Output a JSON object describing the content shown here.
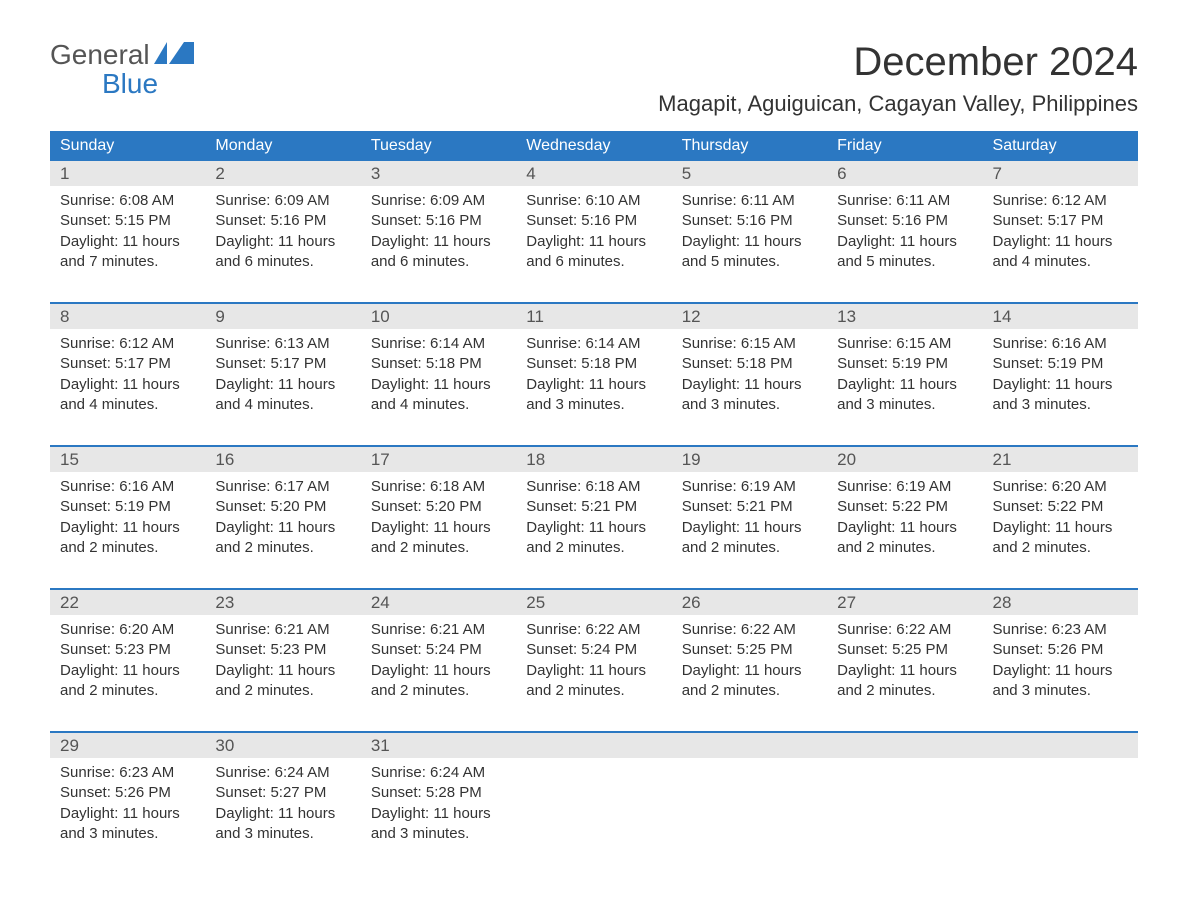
{
  "logo": {
    "text_general": "General",
    "text_blue": "Blue",
    "flag_color": "#2b78c2"
  },
  "header": {
    "month_title": "December 2024",
    "location": "Magapit, Aguiguican, Cagayan Valley, Philippines"
  },
  "colors": {
    "header_bg": "#2b78c2",
    "header_text": "#ffffff",
    "daynum_bg": "#e7e7e7",
    "body_text": "#333333",
    "week_sep": "#2b78c2",
    "page_bg": "#ffffff"
  },
  "typography": {
    "title_fontsize": 40,
    "location_fontsize": 22,
    "dow_fontsize": 16,
    "daynum_fontsize": 17,
    "body_fontsize": 15,
    "font_family": "Arial"
  },
  "days_of_week": [
    "Sunday",
    "Monday",
    "Tuesday",
    "Wednesday",
    "Thursday",
    "Friday",
    "Saturday"
  ],
  "weeks": [
    [
      {
        "n": "1",
        "sunrise": "Sunrise: 6:08 AM",
        "sunset": "Sunset: 5:15 PM",
        "day1": "Daylight: 11 hours",
        "day2": "and 7 minutes."
      },
      {
        "n": "2",
        "sunrise": "Sunrise: 6:09 AM",
        "sunset": "Sunset: 5:16 PM",
        "day1": "Daylight: 11 hours",
        "day2": "and 6 minutes."
      },
      {
        "n": "3",
        "sunrise": "Sunrise: 6:09 AM",
        "sunset": "Sunset: 5:16 PM",
        "day1": "Daylight: 11 hours",
        "day2": "and 6 minutes."
      },
      {
        "n": "4",
        "sunrise": "Sunrise: 6:10 AM",
        "sunset": "Sunset: 5:16 PM",
        "day1": "Daylight: 11 hours",
        "day2": "and 6 minutes."
      },
      {
        "n": "5",
        "sunrise": "Sunrise: 6:11 AM",
        "sunset": "Sunset: 5:16 PM",
        "day1": "Daylight: 11 hours",
        "day2": "and 5 minutes."
      },
      {
        "n": "6",
        "sunrise": "Sunrise: 6:11 AM",
        "sunset": "Sunset: 5:16 PM",
        "day1": "Daylight: 11 hours",
        "day2": "and 5 minutes."
      },
      {
        "n": "7",
        "sunrise": "Sunrise: 6:12 AM",
        "sunset": "Sunset: 5:17 PM",
        "day1": "Daylight: 11 hours",
        "day2": "and 4 minutes."
      }
    ],
    [
      {
        "n": "8",
        "sunrise": "Sunrise: 6:12 AM",
        "sunset": "Sunset: 5:17 PM",
        "day1": "Daylight: 11 hours",
        "day2": "and 4 minutes."
      },
      {
        "n": "9",
        "sunrise": "Sunrise: 6:13 AM",
        "sunset": "Sunset: 5:17 PM",
        "day1": "Daylight: 11 hours",
        "day2": "and 4 minutes."
      },
      {
        "n": "10",
        "sunrise": "Sunrise: 6:14 AM",
        "sunset": "Sunset: 5:18 PM",
        "day1": "Daylight: 11 hours",
        "day2": "and 4 minutes."
      },
      {
        "n": "11",
        "sunrise": "Sunrise: 6:14 AM",
        "sunset": "Sunset: 5:18 PM",
        "day1": "Daylight: 11 hours",
        "day2": "and 3 minutes."
      },
      {
        "n": "12",
        "sunrise": "Sunrise: 6:15 AM",
        "sunset": "Sunset: 5:18 PM",
        "day1": "Daylight: 11 hours",
        "day2": "and 3 minutes."
      },
      {
        "n": "13",
        "sunrise": "Sunrise: 6:15 AM",
        "sunset": "Sunset: 5:19 PM",
        "day1": "Daylight: 11 hours",
        "day2": "and 3 minutes."
      },
      {
        "n": "14",
        "sunrise": "Sunrise: 6:16 AM",
        "sunset": "Sunset: 5:19 PM",
        "day1": "Daylight: 11 hours",
        "day2": "and 3 minutes."
      }
    ],
    [
      {
        "n": "15",
        "sunrise": "Sunrise: 6:16 AM",
        "sunset": "Sunset: 5:19 PM",
        "day1": "Daylight: 11 hours",
        "day2": "and 2 minutes."
      },
      {
        "n": "16",
        "sunrise": "Sunrise: 6:17 AM",
        "sunset": "Sunset: 5:20 PM",
        "day1": "Daylight: 11 hours",
        "day2": "and 2 minutes."
      },
      {
        "n": "17",
        "sunrise": "Sunrise: 6:18 AM",
        "sunset": "Sunset: 5:20 PM",
        "day1": "Daylight: 11 hours",
        "day2": "and 2 minutes."
      },
      {
        "n": "18",
        "sunrise": "Sunrise: 6:18 AM",
        "sunset": "Sunset: 5:21 PM",
        "day1": "Daylight: 11 hours",
        "day2": "and 2 minutes."
      },
      {
        "n": "19",
        "sunrise": "Sunrise: 6:19 AM",
        "sunset": "Sunset: 5:21 PM",
        "day1": "Daylight: 11 hours",
        "day2": "and 2 minutes."
      },
      {
        "n": "20",
        "sunrise": "Sunrise: 6:19 AM",
        "sunset": "Sunset: 5:22 PM",
        "day1": "Daylight: 11 hours",
        "day2": "and 2 minutes."
      },
      {
        "n": "21",
        "sunrise": "Sunrise: 6:20 AM",
        "sunset": "Sunset: 5:22 PM",
        "day1": "Daylight: 11 hours",
        "day2": "and 2 minutes."
      }
    ],
    [
      {
        "n": "22",
        "sunrise": "Sunrise: 6:20 AM",
        "sunset": "Sunset: 5:23 PM",
        "day1": "Daylight: 11 hours",
        "day2": "and 2 minutes."
      },
      {
        "n": "23",
        "sunrise": "Sunrise: 6:21 AM",
        "sunset": "Sunset: 5:23 PM",
        "day1": "Daylight: 11 hours",
        "day2": "and 2 minutes."
      },
      {
        "n": "24",
        "sunrise": "Sunrise: 6:21 AM",
        "sunset": "Sunset: 5:24 PM",
        "day1": "Daylight: 11 hours",
        "day2": "and 2 minutes."
      },
      {
        "n": "25",
        "sunrise": "Sunrise: 6:22 AM",
        "sunset": "Sunset: 5:24 PM",
        "day1": "Daylight: 11 hours",
        "day2": "and 2 minutes."
      },
      {
        "n": "26",
        "sunrise": "Sunrise: 6:22 AM",
        "sunset": "Sunset: 5:25 PM",
        "day1": "Daylight: 11 hours",
        "day2": "and 2 minutes."
      },
      {
        "n": "27",
        "sunrise": "Sunrise: 6:22 AM",
        "sunset": "Sunset: 5:25 PM",
        "day1": "Daylight: 11 hours",
        "day2": "and 2 minutes."
      },
      {
        "n": "28",
        "sunrise": "Sunrise: 6:23 AM",
        "sunset": "Sunset: 5:26 PM",
        "day1": "Daylight: 11 hours",
        "day2": "and 3 minutes."
      }
    ],
    [
      {
        "n": "29",
        "sunrise": "Sunrise: 6:23 AM",
        "sunset": "Sunset: 5:26 PM",
        "day1": "Daylight: 11 hours",
        "day2": "and 3 minutes."
      },
      {
        "n": "30",
        "sunrise": "Sunrise: 6:24 AM",
        "sunset": "Sunset: 5:27 PM",
        "day1": "Daylight: 11 hours",
        "day2": "and 3 minutes."
      },
      {
        "n": "31",
        "sunrise": "Sunrise: 6:24 AM",
        "sunset": "Sunset: 5:28 PM",
        "day1": "Daylight: 11 hours",
        "day2": "and 3 minutes."
      },
      {
        "n": "",
        "sunrise": "",
        "sunset": "",
        "day1": "",
        "day2": ""
      },
      {
        "n": "",
        "sunrise": "",
        "sunset": "",
        "day1": "",
        "day2": ""
      },
      {
        "n": "",
        "sunrise": "",
        "sunset": "",
        "day1": "",
        "day2": ""
      },
      {
        "n": "",
        "sunrise": "",
        "sunset": "",
        "day1": "",
        "day2": ""
      }
    ]
  ]
}
